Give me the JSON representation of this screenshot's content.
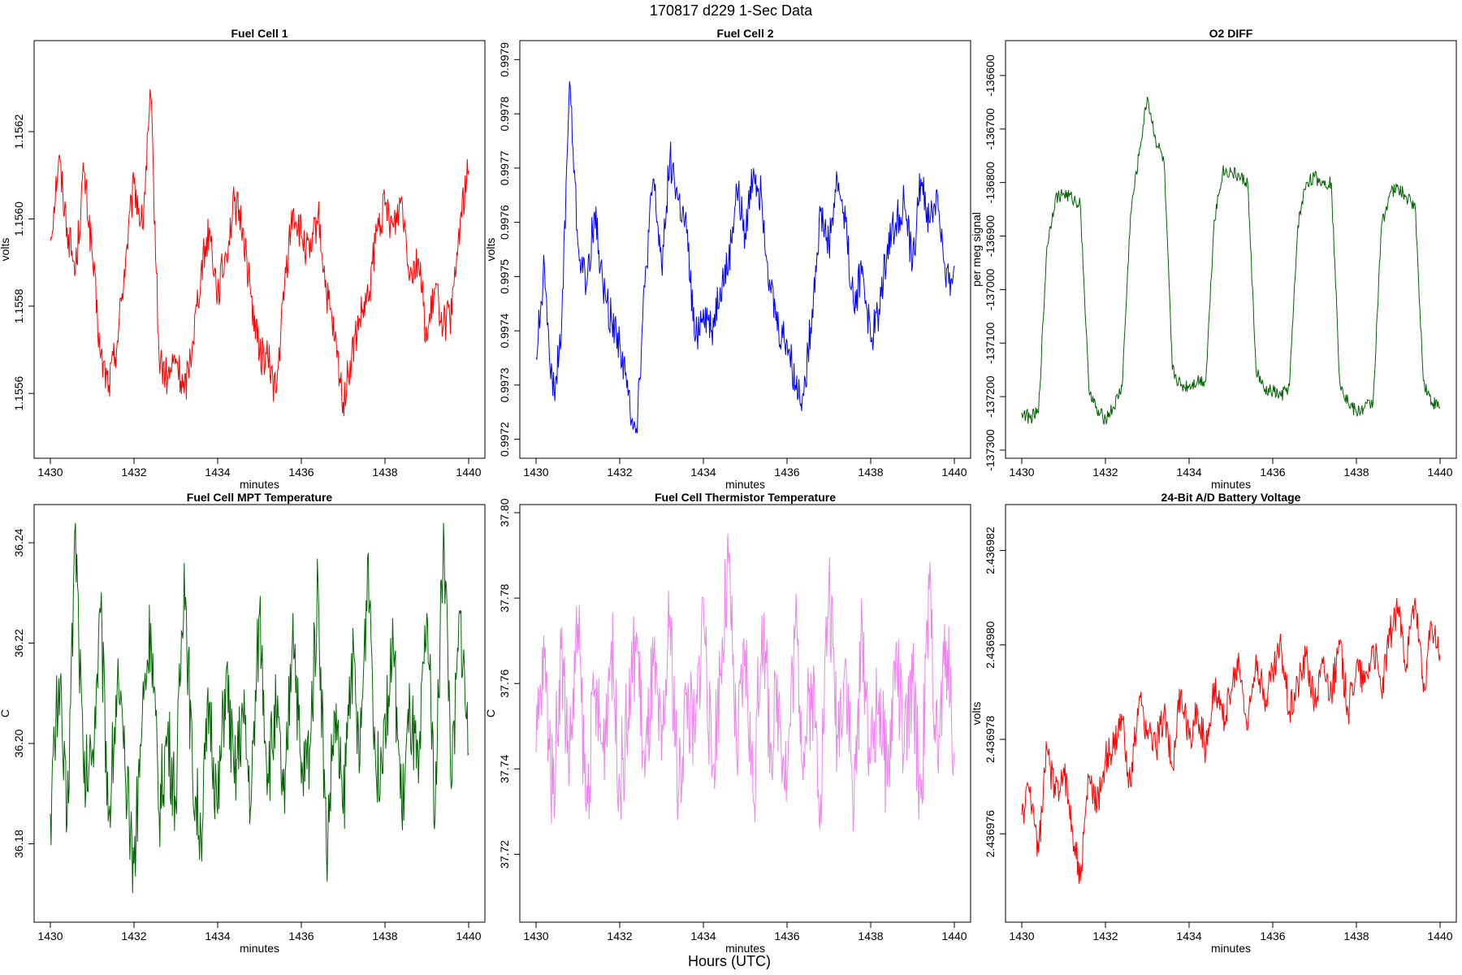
{
  "figure": {
    "title": "170817   d229   1-Sec Data",
    "bottom_label": "Hours (UTC)"
  },
  "chart_data": [
    {
      "type": "line",
      "title": "Fuel Cell 1",
      "xlabel": "minutes",
      "ylabel": "volts",
      "color": "#ff0000",
      "xlim": [
        1430,
        1440
      ],
      "ylim": [
        1.15547,
        1.15639
      ],
      "x_ticks": [
        "1430",
        "1432",
        "1434",
        "1436",
        "1438",
        "1440"
      ],
      "y_ticks": [
        "1.1556",
        "1.1558",
        "1.1560",
        "1.1562"
      ],
      "x": [
        1430.0,
        1430.2,
        1430.4,
        1430.6,
        1430.8,
        1431.0,
        1431.2,
        1431.4,
        1431.6,
        1431.8,
        1432.0,
        1432.2,
        1432.4,
        1432.6,
        1432.8,
        1433.0,
        1433.2,
        1433.4,
        1433.6,
        1433.8,
        1434.0,
        1434.2,
        1434.4,
        1434.6,
        1434.8,
        1435.0,
        1435.2,
        1435.4,
        1435.6,
        1435.8,
        1436.0,
        1436.2,
        1436.4,
        1436.6,
        1436.8,
        1437.0,
        1437.2,
        1437.4,
        1437.6,
        1437.8,
        1438.0,
        1438.2,
        1438.4,
        1438.6,
        1438.8,
        1439.0,
        1439.2,
        1439.4,
        1439.6,
        1439.8,
        1440.0
      ],
      "values": [
        1.15595,
        1.15614,
        1.15598,
        1.15588,
        1.15611,
        1.15592,
        1.15568,
        1.15562,
        1.15572,
        1.15591,
        1.15608,
        1.15598,
        1.15628,
        1.15568,
        1.15563,
        1.15568,
        1.1556,
        1.15572,
        1.15588,
        1.15598,
        1.15583,
        1.15592,
        1.15604,
        1.15598,
        1.15582,
        1.15569,
        1.15568,
        1.1556,
        1.15585,
        1.15602,
        1.15596,
        1.15591,
        1.15601,
        1.15583,
        1.15572,
        1.15558,
        1.15568,
        1.15577,
        1.15581,
        1.15597,
        1.15603,
        1.15598,
        1.15605,
        1.15588,
        1.15591,
        1.15572,
        1.15584,
        1.15576,
        1.15578,
        1.156,
        1.15611
      ]
    },
    {
      "type": "line",
      "title": "Fuel Cell 2",
      "xlabel": "minutes",
      "ylabel": "volts",
      "color": "#0000ff",
      "xlim": [
        1430,
        1440
      ],
      "ylim": [
        0.99718,
        0.99792
      ],
      "x_ticks": [
        "1430",
        "1432",
        "1434",
        "1436",
        "1438",
        "1440"
      ],
      "y_ticks": [
        "0.9972",
        "0.9973",
        "0.9974",
        "0.9975",
        "0.9976",
        "0.9977",
        "0.9978",
        "0.9979"
      ],
      "x": [
        1430.0,
        1430.2,
        1430.4,
        1430.6,
        1430.8,
        1431.0,
        1431.2,
        1431.4,
        1431.6,
        1431.8,
        1432.0,
        1432.2,
        1432.4,
        1432.6,
        1432.8,
        1433.0,
        1433.2,
        1433.4,
        1433.6,
        1433.8,
        1434.0,
        1434.2,
        1434.4,
        1434.6,
        1434.8,
        1435.0,
        1435.2,
        1435.4,
        1435.6,
        1435.8,
        1436.0,
        1436.2,
        1436.4,
        1436.6,
        1436.8,
        1437.0,
        1437.2,
        1437.4,
        1437.6,
        1437.8,
        1438.0,
        1438.2,
        1438.4,
        1438.6,
        1438.8,
        1439.0,
        1439.2,
        1439.4,
        1439.6,
        1439.8,
        1440.0
      ],
      "values": [
        0.99735,
        0.99752,
        0.99728,
        0.99738,
        0.99786,
        0.99756,
        0.99748,
        0.99762,
        0.99748,
        0.99742,
        0.99738,
        0.99728,
        0.99722,
        0.99748,
        0.99768,
        0.99752,
        0.99772,
        0.99764,
        0.99758,
        0.99738,
        0.99744,
        0.9974,
        0.99748,
        0.99752,
        0.99766,
        0.99758,
        0.9977,
        0.99764,
        0.99748,
        0.9974,
        0.99738,
        0.9973,
        0.99728,
        0.99744,
        0.99762,
        0.99756,
        0.99768,
        0.9976,
        0.99744,
        0.99752,
        0.99738,
        0.99744,
        0.99756,
        0.9976,
        0.99764,
        0.99752,
        0.99768,
        0.9976,
        0.99765,
        0.99748,
        0.99752
      ]
    },
    {
      "type": "line",
      "title": "O2 DIFF",
      "xlabel": "minutes",
      "ylabel": "per meg signal",
      "color": "#006400",
      "xlim": [
        1430,
        1440
      ],
      "ylim": [
        -137300,
        -136550
      ],
      "x_ticks": [
        "1430",
        "1432",
        "1434",
        "1436",
        "1438",
        "1440"
      ],
      "y_ticks": [
        "-137300",
        "-137200",
        "-137100",
        "-137000",
        "-136900",
        "-136800",
        "-136700",
        "-136600"
      ],
      "x": [
        1430.0,
        1430.2,
        1430.4,
        1430.6,
        1430.8,
        1431.0,
        1431.2,
        1431.4,
        1431.6,
        1431.8,
        1432.0,
        1432.2,
        1432.4,
        1432.6,
        1432.8,
        1433.0,
        1433.2,
        1433.4,
        1433.6,
        1433.8,
        1434.0,
        1434.2,
        1434.4,
        1434.6,
        1434.8,
        1435.0,
        1435.2,
        1435.4,
        1435.6,
        1435.8,
        1436.0,
        1436.2,
        1436.4,
        1436.6,
        1436.8,
        1437.0,
        1437.2,
        1437.4,
        1437.6,
        1437.8,
        1438.0,
        1438.2,
        1438.4,
        1438.6,
        1438.8,
        1439.0,
        1439.2,
        1439.4,
        1439.6,
        1439.8,
        1440.0
      ],
      "values": [
        -137230,
        -137240,
        -137230,
        -136920,
        -136830,
        -136820,
        -136830,
        -136840,
        -137180,
        -137230,
        -137240,
        -137220,
        -137180,
        -136860,
        -136750,
        -136640,
        -136720,
        -136760,
        -137150,
        -137180,
        -137180,
        -137170,
        -137170,
        -136870,
        -136780,
        -136780,
        -136790,
        -136800,
        -137150,
        -137190,
        -137190,
        -137200,
        -137180,
        -136880,
        -136800,
        -136790,
        -136800,
        -136800,
        -137170,
        -137210,
        -137230,
        -137220,
        -137210,
        -136880,
        -136820,
        -136810,
        -136830,
        -136840,
        -137170,
        -137210,
        -137220
      ]
    },
    {
      "type": "line",
      "title": "Fuel Cell MPT Temperature",
      "xlabel": "minutes",
      "ylabel": "C",
      "color": "#006400",
      "xlim": [
        1430,
        1440
      ],
      "ylim": [
        36.166,
        36.246
      ],
      "x_ticks": [
        "1430",
        "1432",
        "1434",
        "1436",
        "1438",
        "1440"
      ],
      "y_ticks": [
        "36.18",
        "36.20",
        "36.22",
        "36.24"
      ],
      "x": [
        1430.0,
        1430.2,
        1430.4,
        1430.6,
        1430.8,
        1431.0,
        1431.2,
        1431.4,
        1431.6,
        1431.8,
        1432.0,
        1432.2,
        1432.4,
        1432.6,
        1432.8,
        1433.0,
        1433.2,
        1433.4,
        1433.6,
        1433.8,
        1434.0,
        1434.2,
        1434.4,
        1434.6,
        1434.8,
        1435.0,
        1435.2,
        1435.4,
        1435.6,
        1435.8,
        1436.0,
        1436.2,
        1436.4,
        1436.6,
        1436.8,
        1437.0,
        1437.2,
        1437.4,
        1437.6,
        1437.8,
        1438.0,
        1438.2,
        1438.4,
        1438.6,
        1438.8,
        1439.0,
        1439.2,
        1439.4,
        1439.6,
        1439.8,
        1440.0
      ],
      "values": [
        36.186,
        36.213,
        36.184,
        36.244,
        36.192,
        36.198,
        36.226,
        36.186,
        36.212,
        36.192,
        36.176,
        36.206,
        36.224,
        36.186,
        36.202,
        36.188,
        36.236,
        36.193,
        36.182,
        36.208,
        36.186,
        36.214,
        36.192,
        36.206,
        36.188,
        36.226,
        36.194,
        36.206,
        36.186,
        36.226,
        36.192,
        36.199,
        36.232,
        36.178,
        36.206,
        36.186,
        36.218,
        36.196,
        36.238,
        36.192,
        36.206,
        36.219,
        36.186,
        36.206,
        36.192,
        36.226,
        36.186,
        36.244,
        36.192,
        36.226,
        36.198
      ]
    },
    {
      "type": "line",
      "title": "Fuel Cell Thermistor Temperature",
      "xlabel": "minutes",
      "ylabel": "C",
      "color": "#ee82ee",
      "xlim": [
        1430,
        1440
      ],
      "ylim": [
        37.706,
        37.8
      ],
      "x_ticks": [
        "1430",
        "1432",
        "1434",
        "1436",
        "1438",
        "1440"
      ],
      "y_ticks": [
        "37.72",
        "37.74",
        "37.76",
        "37.78",
        "37.80"
      ],
      "x": [
        1430.0,
        1430.2,
        1430.4,
        1430.6,
        1430.8,
        1431.0,
        1431.2,
        1431.4,
        1431.6,
        1431.8,
        1432.0,
        1432.2,
        1432.4,
        1432.6,
        1432.8,
        1433.0,
        1433.2,
        1433.4,
        1433.6,
        1433.8,
        1434.0,
        1434.2,
        1434.4,
        1434.6,
        1434.8,
        1435.0,
        1435.2,
        1435.4,
        1435.6,
        1435.8,
        1436.0,
        1436.2,
        1436.4,
        1436.6,
        1436.8,
        1437.0,
        1437.2,
        1437.4,
        1437.6,
        1437.8,
        1438.0,
        1438.2,
        1438.4,
        1438.6,
        1438.8,
        1439.0,
        1439.2,
        1439.4,
        1439.6,
        1439.8,
        1440.0
      ],
      "values": [
        37.744,
        37.766,
        37.734,
        37.768,
        37.742,
        37.774,
        37.73,
        37.758,
        37.744,
        37.77,
        37.736,
        37.752,
        37.772,
        37.738,
        37.764,
        37.742,
        37.776,
        37.733,
        37.758,
        37.746,
        37.78,
        37.738,
        37.762,
        37.788,
        37.742,
        37.768,
        37.732,
        37.776,
        37.746,
        37.756,
        37.738,
        37.774,
        37.744,
        37.76,
        37.734,
        37.784,
        37.748,
        37.766,
        37.73,
        37.772,
        37.742,
        37.758,
        37.736,
        37.768,
        37.744,
        37.76,
        37.733,
        37.782,
        37.742,
        37.77,
        37.744
      ]
    },
    {
      "type": "line",
      "title": "24-Bit A/D Battery Voltage",
      "xlabel": "minutes",
      "ylabel": "volts",
      "color": "#ff0000",
      "xlim": [
        1430,
        1440
      ],
      "ylim": [
        2.4369743,
        2.4369828
      ],
      "x_ticks": [
        "1430",
        "1432",
        "1434",
        "1436",
        "1438",
        "1440"
      ],
      "y_ticks": [
        "2.436976",
        "2.436978",
        "2.436980",
        "2.436982"
      ],
      "x": [
        1430.0,
        1430.2,
        1430.4,
        1430.6,
        1430.8,
        1431.0,
        1431.2,
        1431.4,
        1431.6,
        1431.8,
        1432.0,
        1432.2,
        1432.4,
        1432.6,
        1432.8,
        1433.0,
        1433.2,
        1433.4,
        1433.6,
        1433.8,
        1434.0,
        1434.2,
        1434.4,
        1434.6,
        1434.8,
        1435.0,
        1435.2,
        1435.4,
        1435.6,
        1435.8,
        1436.0,
        1436.2,
        1436.4,
        1436.6,
        1436.8,
        1437.0,
        1437.2,
        1437.4,
        1437.6,
        1437.8,
        1438.0,
        1438.2,
        1438.4,
        1438.6,
        1438.8,
        1439.0,
        1439.2,
        1439.4,
        1439.6,
        1439.8,
        1440.0
      ],
      "values": [
        2.4369764,
        2.436977,
        2.4369756,
        2.4369778,
        2.4369768,
        2.4369774,
        2.4369762,
        2.436975,
        2.4369772,
        2.4369766,
        2.4369776,
        2.4369778,
        2.4369784,
        2.436977,
        2.4369788,
        2.4369782,
        2.4369778,
        2.4369786,
        2.4369774,
        2.436979,
        2.436978,
        2.4369786,
        2.4369778,
        2.4369792,
        2.4369784,
        2.436979,
        2.4369796,
        2.4369782,
        2.4369798,
        2.4369788,
        2.4369794,
        2.43698,
        2.4369786,
        2.4369792,
        2.4369798,
        2.4369788,
        2.4369796,
        2.436979,
        2.43698,
        2.4369786,
        2.4369796,
        2.4369792,
        2.43698,
        2.436979,
        2.4369802,
        2.4369808,
        2.4369796,
        2.436981,
        2.436979,
        2.4369804,
        2.4369798
      ]
    }
  ]
}
